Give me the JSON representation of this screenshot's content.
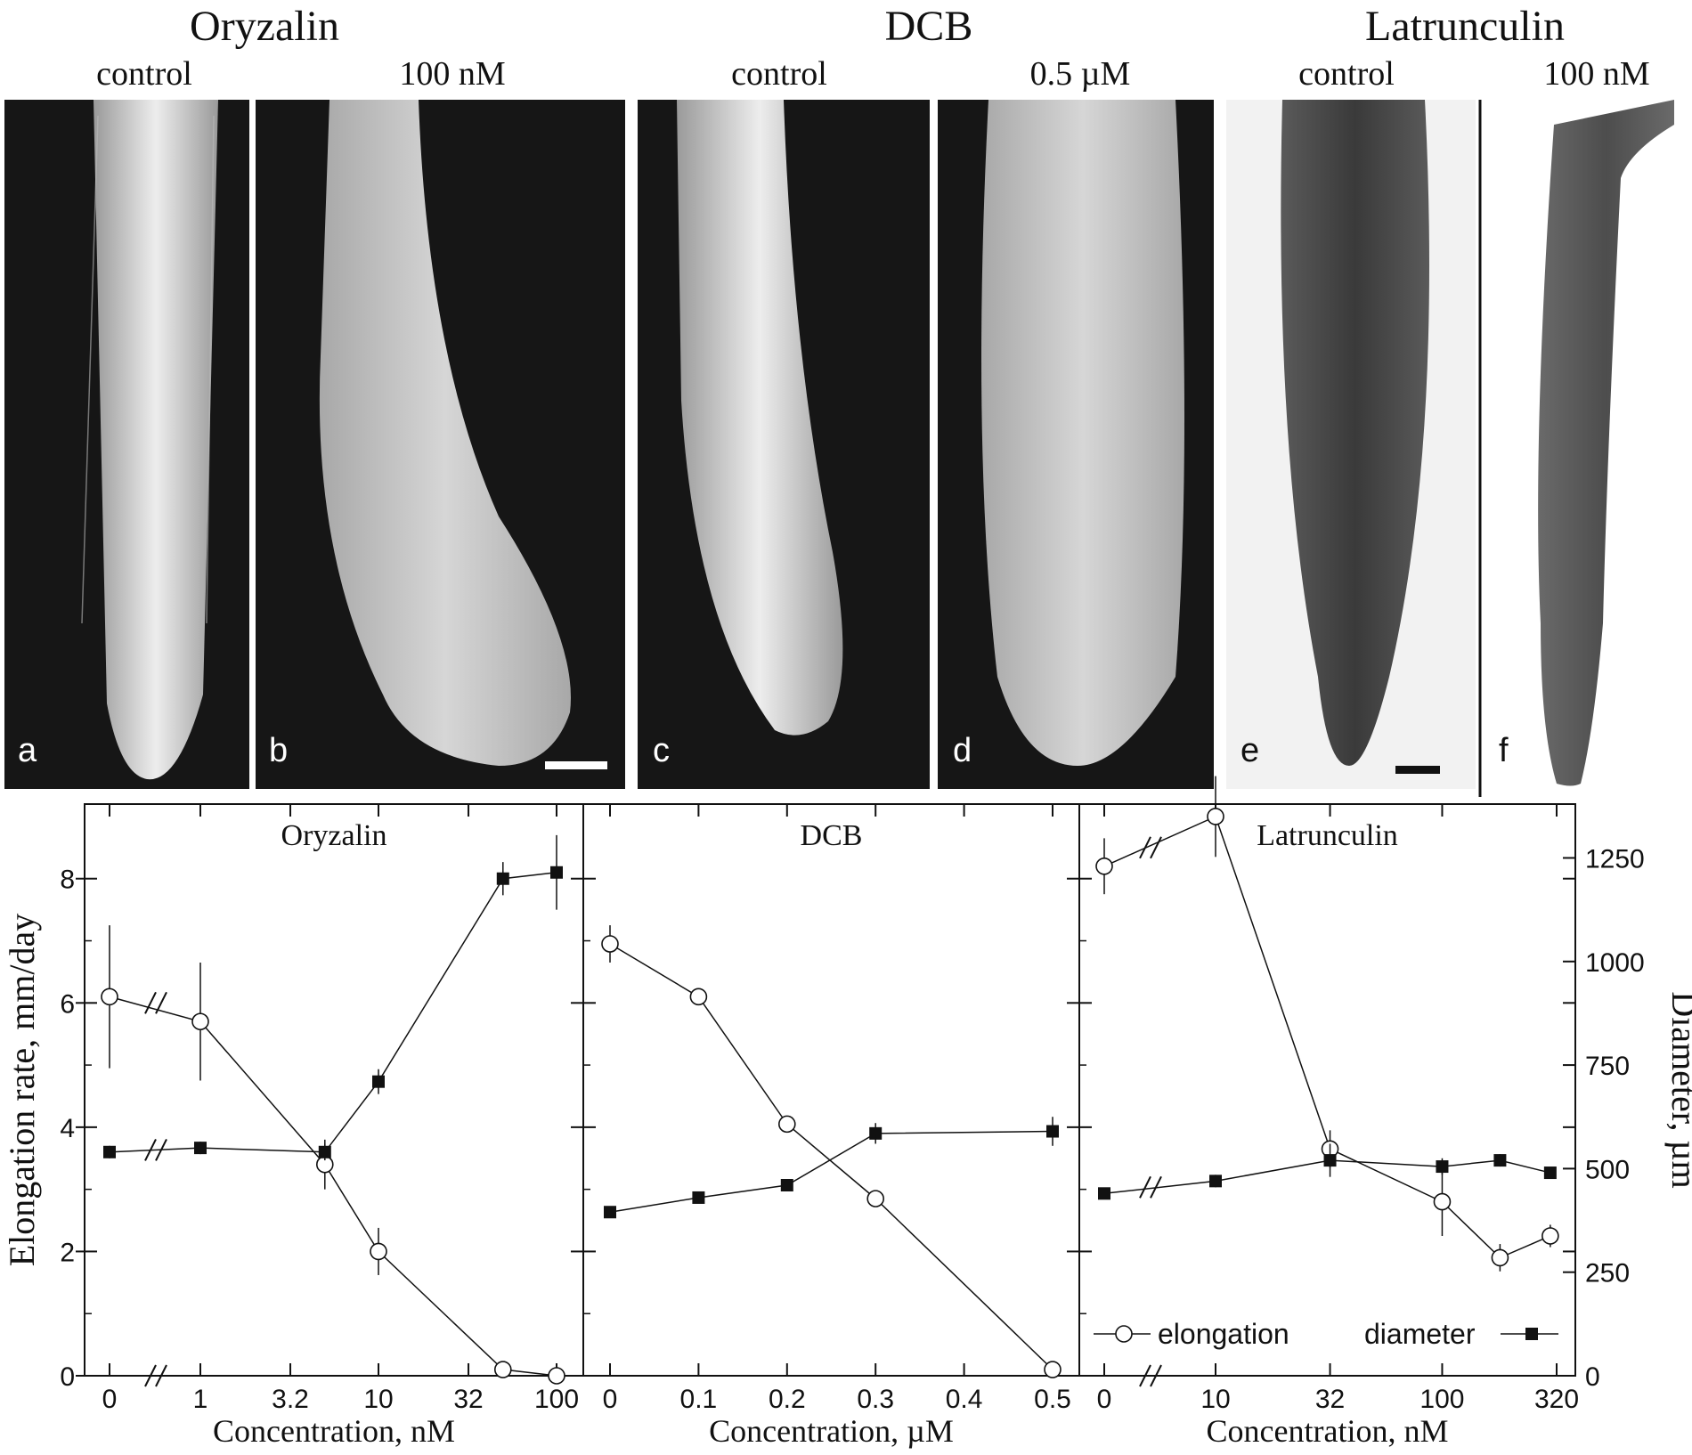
{
  "groups": [
    {
      "title": "Oryzalin"
    },
    {
      "title": "DCB"
    },
    {
      "title": "Latrunculin"
    }
  ],
  "photos": [
    {
      "letter": "a",
      "label": "control",
      "tone": "dark",
      "scale_bar": false
    },
    {
      "letter": "b",
      "label": "100 nM",
      "tone": "dark",
      "scale_bar": true
    },
    {
      "letter": "c",
      "label": "control",
      "tone": "dark",
      "scale_bar": false
    },
    {
      "letter": "d",
      "label": "0.5 µM",
      "tone": "dark",
      "scale_bar": false
    },
    {
      "letter": "e",
      "label": "control",
      "tone": "light",
      "scale_bar": true
    },
    {
      "letter": "f",
      "label": "100 nM",
      "tone": "light",
      "scale_bar": false
    }
  ],
  "colors": {
    "dark_bg": "#161616",
    "light_bg": "#f2f2f2",
    "ink": "#111111"
  },
  "chart_data": {
    "type": "line",
    "ylabel_left": "Elongation rate, mm/day",
    "ylabel_right": "Diameter, µm",
    "ylim_left": [
      0,
      9.2
    ],
    "ylim_right": [
      0,
      1380
    ],
    "yticks_left": [
      0,
      2,
      4,
      6,
      8
    ],
    "yticks_right": [
      0,
      250,
      500,
      750,
      1000,
      1250
    ],
    "legend": {
      "elongation": "elongation",
      "diameter": "diameter",
      "placement": "bottom-right"
    },
    "panels": [
      {
        "title": "Oryzalin",
        "xlabel": "Concentration, nM",
        "xscale": "log-with-break",
        "xticks": [
          {
            "v": 0,
            "label": "0"
          },
          {
            "v": 1,
            "label": "1"
          },
          {
            "v": 3.2,
            "label": "3.2"
          },
          {
            "v": 10,
            "label": "10"
          },
          {
            "v": 32,
            "label": "32"
          },
          {
            "v": 100,
            "label": "100"
          }
        ],
        "elongation": {
          "x": [
            0,
            1,
            5,
            10,
            50,
            100
          ],
          "y": [
            6.1,
            5.7,
            3.4,
            2.0,
            0.1,
            0.0
          ],
          "err": [
            1.15,
            0.95,
            0.4,
            0.38,
            0.12,
            0.12
          ]
        },
        "diameter": {
          "x": [
            0,
            1,
            5,
            10,
            50,
            100
          ],
          "y": [
            540,
            550,
            540,
            710,
            1200,
            1215
          ],
          "err": [
            15,
            15,
            20,
            30,
            40,
            90
          ]
        }
      },
      {
        "title": "DCB",
        "xlabel": "Concentration, µM",
        "xscale": "linear",
        "xticks": [
          {
            "v": 0,
            "label": "0"
          },
          {
            "v": 0.1,
            "label": "0.1"
          },
          {
            "v": 0.2,
            "label": "0.2"
          },
          {
            "v": 0.3,
            "label": "0.3"
          },
          {
            "v": 0.4,
            "label": "0.4"
          },
          {
            "v": 0.5,
            "label": "0.5"
          }
        ],
        "elongation": {
          "x": [
            0,
            0.1,
            0.2,
            0.3,
            0.5
          ],
          "y": [
            6.95,
            6.1,
            4.05,
            2.85,
            0.1
          ],
          "err": [
            0.3,
            0.12,
            0.12,
            0.12,
            0.12
          ]
        },
        "diameter": {
          "x": [
            0,
            0.1,
            0.2,
            0.3,
            0.5
          ],
          "y": [
            395,
            430,
            460,
            585,
            590
          ],
          "err": [
            10,
            12,
            12,
            25,
            35
          ]
        }
      },
      {
        "title": "Latrunculin",
        "xlabel": "Concentration, nM",
        "xscale": "log-with-break",
        "xticks": [
          {
            "v": 0,
            "label": "0"
          },
          {
            "v": 10,
            "label": "10"
          },
          {
            "v": 32,
            "label": "32"
          },
          {
            "v": 100,
            "label": "100"
          },
          {
            "v": 320,
            "label": "320"
          }
        ],
        "elongation": {
          "x": [
            0,
            10,
            32,
            100,
            180,
            300
          ],
          "y": [
            8.2,
            9.0,
            3.65,
            2.8,
            1.9,
            2.25
          ],
          "err": [
            0.45,
            0.65,
            0.3,
            0.55,
            0.22,
            0.18
          ]
        },
        "diameter": {
          "x": [
            0,
            10,
            32,
            100,
            180,
            300
          ],
          "y": [
            440,
            470,
            520,
            505,
            520,
            490
          ],
          "err": [
            12,
            15,
            40,
            20,
            15,
            12
          ]
        }
      }
    ]
  }
}
